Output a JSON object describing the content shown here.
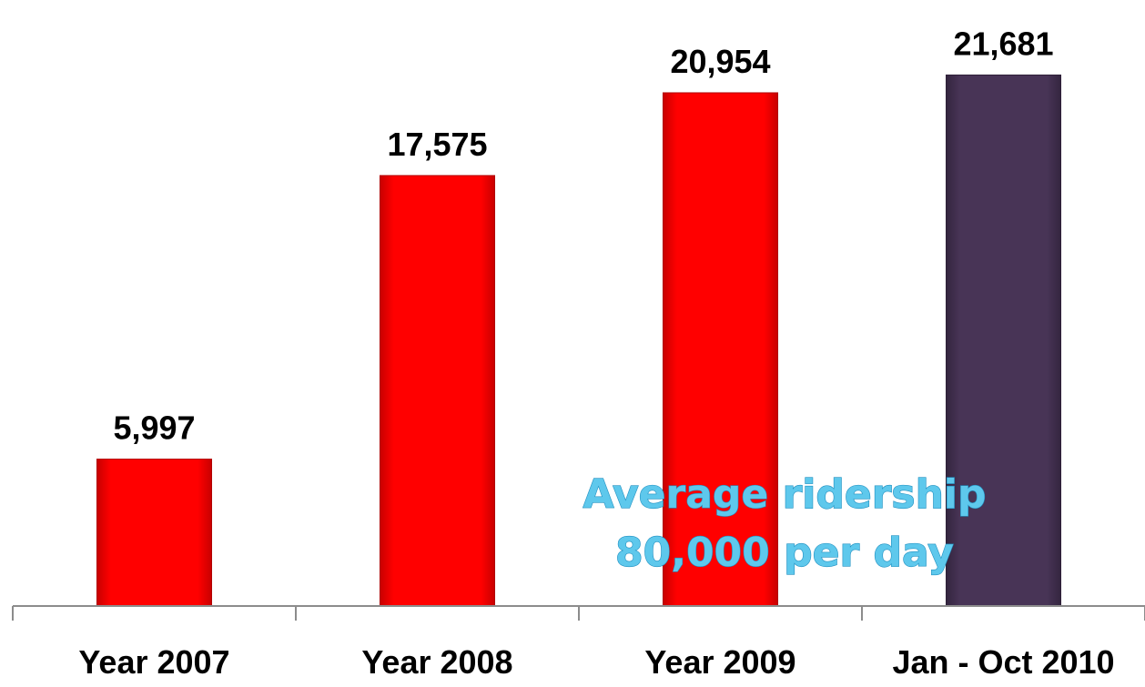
{
  "chart_data": {
    "type": "bar",
    "categories": [
      "Year 2007",
      "Year 2008",
      "Year 2009",
      "Jan - Oct 2010"
    ],
    "values": [
      5997,
      17575,
      20954,
      21681
    ],
    "value_labels": [
      "5,997",
      "17,575",
      "20,954",
      "21,681"
    ],
    "bar_colors": [
      "#ff0000",
      "#ff0000",
      "#ff0000",
      "#483456"
    ],
    "title": "",
    "xlabel": "",
    "ylabel": "",
    "ylim": [
      0,
      24000
    ],
    "grid": false,
    "annotation": {
      "lines": [
        "Average ridership",
        "80,000 per day"
      ],
      "color": "#5ec8ec"
    }
  }
}
